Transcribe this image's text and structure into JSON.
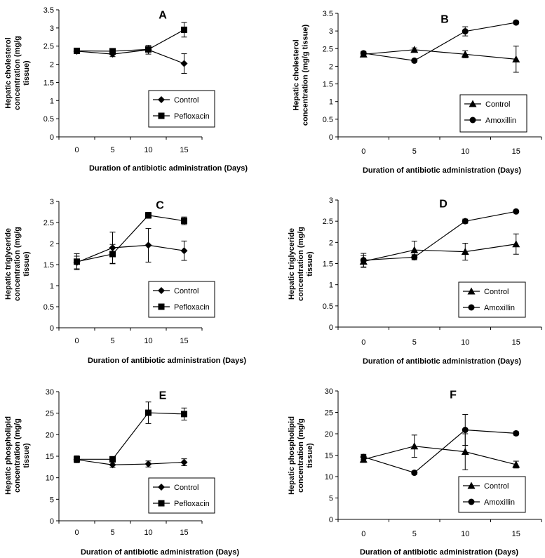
{
  "chart_data": [
    {
      "type": "line",
      "panel": "A",
      "x": [
        0,
        5,
        10,
        15
      ],
      "xlabel": "Duration of antibiotic administration (Days)",
      "ylabel_lines": [
        "Hepatic cholesterol",
        "concentration (mg/g",
        "tissue)"
      ],
      "ylim": [
        0,
        3.5
      ],
      "yticks": [
        "0",
        "0.5",
        "1",
        "1.5",
        "2",
        "2.5",
        "3",
        "3.5"
      ],
      "ytick_values": [
        0,
        0.5,
        1,
        1.5,
        2,
        2.5,
        3,
        3.5
      ],
      "series": [
        {
          "name": "Control",
          "marker": "diamond",
          "values": [
            2.36,
            2.28,
            2.4,
            2.02
          ],
          "errors": [
            0.05,
            0.07,
            0.12,
            0.27
          ]
        },
        {
          "name": "Pefloxacin",
          "marker": "square",
          "values": [
            2.37,
            2.36,
            2.41,
            2.95
          ],
          "errors": [
            0.04,
            0.05,
            0.06,
            0.2
          ]
        }
      ]
    },
    {
      "type": "line",
      "panel": "B",
      "x": [
        0,
        5,
        10,
        15
      ],
      "xlabel": "Duration of antibiotic administration (Days)",
      "ylabel_lines": [
        "Hepatic cholesterol",
        "concentration (mg/g tissue)"
      ],
      "ylim": [
        0,
        3.5
      ],
      "yticks": [
        "0",
        "0.5",
        "1",
        "1.5",
        "2",
        "2.5",
        "3",
        "3.5"
      ],
      "ytick_values": [
        0,
        0.5,
        1,
        1.5,
        2,
        2.5,
        3,
        3.5
      ],
      "series": [
        {
          "name": "Control",
          "marker": "triangle",
          "values": [
            2.34,
            2.47,
            2.34,
            2.2
          ],
          "errors": [
            0.05,
            0.05,
            0.1,
            0.37
          ]
        },
        {
          "name": "Amoxillin",
          "marker": "circle",
          "values": [
            2.37,
            2.16,
            2.99,
            3.24
          ],
          "errors": [
            0.05,
            0.04,
            0.13,
            0.04
          ]
        }
      ]
    },
    {
      "type": "line",
      "panel": "C",
      "x": [
        0,
        5,
        10,
        15
      ],
      "xlabel": "Duration of antibiotic administration (Days)",
      "ylabel_lines": [
        "Hepatic triglyceride",
        "concentration (mg/g",
        "tissue)"
      ],
      "ylim": [
        0,
        3
      ],
      "yticks": [
        "0",
        "0.5",
        "1",
        "1.5",
        "2",
        "2.5",
        "3"
      ],
      "ytick_values": [
        0,
        0.5,
        1,
        1.5,
        2,
        2.5,
        3
      ],
      "series": [
        {
          "name": "Control",
          "marker": "diamond",
          "values": [
            1.55,
            1.9,
            1.96,
            1.83
          ],
          "errors": [
            0.15,
            0.37,
            0.4,
            0.23
          ]
        },
        {
          "name": "Pefloxacin",
          "marker": "square",
          "values": [
            1.57,
            1.75,
            2.67,
            2.54
          ],
          "errors": [
            0.19,
            0.23,
            0.07,
            0.09
          ]
        }
      ]
    },
    {
      "type": "line",
      "panel": "D",
      "x": [
        0,
        5,
        10,
        15
      ],
      "xlabel": "Duration of antibiotic administration (Days)",
      "ylabel_lines": [
        "Hepatic triglyceride",
        "concentration (mg/g",
        "tissue)"
      ],
      "ylim": [
        0,
        3
      ],
      "yticks": [
        "0",
        "0.5",
        "1",
        "1.5",
        "2",
        "2.5",
        "3"
      ],
      "ytick_values": [
        0,
        0.5,
        1,
        1.5,
        2,
        2.5,
        3
      ],
      "series": [
        {
          "name": "Control",
          "marker": "triangle",
          "values": [
            1.55,
            1.82,
            1.78,
            1.96
          ],
          "errors": [
            0.14,
            0.21,
            0.2,
            0.24
          ]
        },
        {
          "name": "Amoxillin",
          "marker": "circle",
          "values": [
            1.58,
            1.65,
            2.5,
            2.73
          ],
          "errors": [
            0.16,
            0.06,
            0.05,
            0.03
          ]
        }
      ]
    },
    {
      "type": "line",
      "panel": "E",
      "x": [
        0,
        5,
        10,
        15
      ],
      "xlabel": "Duration of antibiotic administration (Days)",
      "ylabel_lines": [
        "Hepatic phospholipid",
        "concentration (mg/g",
        "tissue)"
      ],
      "ylim": [
        0,
        30
      ],
      "yticks": [
        "0",
        "5",
        "10",
        "15",
        "20",
        "25",
        "30"
      ],
      "ytick_values": [
        0,
        5,
        10,
        15,
        20,
        25,
        30
      ],
      "series": [
        {
          "name": "Control",
          "marker": "diamond",
          "values": [
            14.2,
            13.0,
            13.2,
            13.6
          ],
          "errors": [
            0.6,
            0.6,
            0.7,
            0.8
          ]
        },
        {
          "name": "Pefloxacin",
          "marker": "square",
          "values": [
            14.3,
            14.3,
            25.1,
            24.8
          ],
          "errors": [
            0.8,
            0.6,
            2.5,
            1.4
          ]
        }
      ]
    },
    {
      "type": "line",
      "panel": "F",
      "x": [
        0,
        5,
        10,
        15
      ],
      "xlabel": "Duration of antibiotic administration (Days)",
      "ylabel_lines": [
        "Hepatic phospholipid",
        "concentration (mg/g",
        "tissue)"
      ],
      "ylim": [
        0,
        30
      ],
      "yticks": [
        "0",
        "5",
        "10",
        "15",
        "20",
        "25",
        "30"
      ],
      "ytick_values": [
        0,
        5,
        10,
        15,
        20,
        25,
        30
      ],
      "series": [
        {
          "name": "Control",
          "marker": "triangle",
          "values": [
            14.0,
            17.1,
            15.8,
            12.8
          ],
          "errors": [
            0.7,
            2.6,
            4.2,
            0.8
          ]
        },
        {
          "name": "Amoxillin",
          "marker": "circle",
          "values": [
            14.6,
            10.9,
            20.9,
            20.1
          ],
          "errors": [
            0.6,
            0.4,
            3.6,
            0.4
          ]
        }
      ]
    }
  ]
}
